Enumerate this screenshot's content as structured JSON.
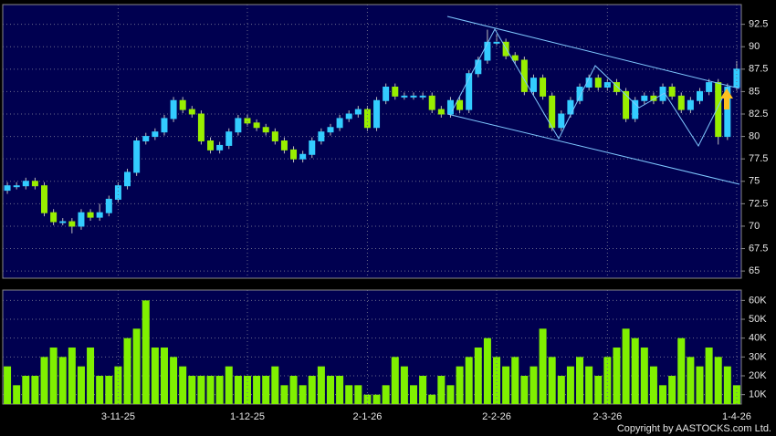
{
  "chart_data": [
    {
      "type": "candlestick",
      "up_color": "#33ccff",
      "down_color": "#99ee00",
      "ylim": [
        64.2,
        94.7
      ],
      "yticks": [
        65,
        67.5,
        70,
        72.5,
        75,
        77.5,
        80,
        82.5,
        85,
        87.5,
        90,
        92.5
      ],
      "grid": true,
      "open": [
        74,
        74.5,
        74.5,
        75,
        74.5,
        71.5,
        70.5,
        70.5,
        70,
        71.5,
        71,
        71.5,
        73,
        74.5,
        76,
        79.5,
        80,
        80.5,
        82,
        84,
        83,
        82.5,
        79.5,
        78.5,
        79,
        80.5,
        82,
        81.5,
        81,
        80.5,
        79.5,
        78.5,
        77.5,
        78,
        79.5,
        80.5,
        81,
        82,
        82.5,
        83,
        81,
        84,
        85.5,
        84.5,
        84.5,
        84.5,
        84.5,
        83,
        82.5,
        84,
        83,
        87,
        88.5,
        90.5,
        90.5,
        89,
        88.5,
        85,
        86.5,
        84.5,
        81,
        82.5,
        84,
        85.5,
        86.5,
        85.5,
        86,
        85,
        82,
        84,
        84.5,
        84,
        85.5,
        84.5,
        83,
        84,
        85,
        86,
        80,
        85.5
      ],
      "high": [
        74.9,
        74.9,
        75.4,
        75.4,
        74.9,
        71.9,
        70.9,
        70.9,
        71.9,
        71.9,
        72.5,
        73.4,
        74.9,
        76.4,
        79.9,
        80.4,
        80.9,
        82.4,
        84.4,
        84.4,
        83.4,
        82.9,
        79.9,
        79.4,
        80.9,
        82.4,
        82.4,
        81.9,
        81.4,
        80.9,
        79.9,
        78.9,
        78.4,
        79.9,
        80.9,
        81.4,
        82.4,
        82.9,
        83.4,
        83.4,
        84.4,
        85.9,
        85.9,
        84.9,
        84.9,
        84.9,
        84.9,
        83.4,
        84.4,
        84.4,
        87.4,
        88.9,
        91.9,
        91.4,
        90.9,
        89.4,
        88.9,
        86.9,
        86.9,
        84.9,
        82.9,
        84.4,
        85.9,
        86.9,
        86.9,
        86.4,
        86.4,
        85.4,
        84.4,
        84.9,
        84.9,
        85.9,
        85.9,
        84.9,
        84.4,
        85.4,
        86.4,
        86.4,
        85.9,
        88.4
      ],
      "low": [
        73.6,
        74.1,
        74.1,
        74.1,
        71.1,
        70.1,
        70.1,
        69.2,
        69.6,
        70.6,
        70.6,
        71.1,
        72.6,
        74.1,
        75.6,
        79.1,
        79.6,
        80.1,
        81.6,
        82.6,
        82.1,
        79.1,
        78.1,
        78.1,
        78.6,
        80.1,
        81.1,
        80.6,
        80.1,
        79.1,
        78.1,
        77.1,
        77.1,
        77.6,
        79.1,
        80.1,
        80.6,
        81.6,
        82.1,
        80.6,
        80.6,
        83.6,
        84.1,
        84.1,
        84.1,
        84.1,
        82.6,
        82.1,
        82.1,
        82.6,
        82.6,
        86.6,
        88.1,
        90.1,
        88.6,
        88.1,
        84.6,
        84.6,
        84.1,
        80.6,
        80.6,
        82.1,
        83.6,
        85.1,
        85.1,
        85.1,
        84.6,
        81.6,
        81.6,
        83.6,
        83.6,
        83.6,
        84.1,
        82.6,
        82.6,
        83.6,
        84.6,
        79.1,
        79.6,
        85.1
      ],
      "close": [
        74.5,
        74.5,
        75,
        74.5,
        71.5,
        70.5,
        70.5,
        70,
        71.5,
        71,
        71.5,
        73,
        74.5,
        76,
        79.5,
        80,
        80.5,
        82,
        84,
        83,
        82.5,
        79.5,
        78.5,
        79,
        80.5,
        82,
        81.5,
        81,
        80.5,
        79.5,
        78.5,
        77.5,
        78,
        79.5,
        80.5,
        81,
        82,
        82.5,
        83,
        81,
        84,
        85.5,
        84.5,
        84.5,
        84.5,
        84.5,
        83,
        82.5,
        84,
        83,
        87,
        88.5,
        90.5,
        90.5,
        89,
        88.5,
        85,
        86.5,
        84.5,
        81,
        82.5,
        84,
        85.5,
        86.5,
        85.5,
        86,
        85,
        82,
        84,
        84.5,
        84,
        85.5,
        84.5,
        83,
        84,
        85,
        86,
        80,
        85.5,
        87.5
      ]
    },
    {
      "type": "bar",
      "color": "#80f000",
      "ylim": [
        5000,
        65500
      ],
      "grid": true,
      "yticks": [
        {
          "value": 10000,
          "label": "10K"
        },
        {
          "value": 20000,
          "label": "20K"
        },
        {
          "value": 30000,
          "label": "30K"
        },
        {
          "value": 40000,
          "label": "40K"
        },
        {
          "value": 50000,
          "label": "50K"
        },
        {
          "value": 60000,
          "label": "60K"
        }
      ],
      "categories": [
        null,
        null,
        null,
        null,
        null,
        null,
        null,
        null,
        null,
        null,
        null,
        null,
        "3-11-25",
        null,
        null,
        null,
        null,
        null,
        null,
        null,
        null,
        null,
        null,
        null,
        null,
        null,
        "1-12-25",
        null,
        null,
        null,
        null,
        null,
        null,
        null,
        null,
        null,
        null,
        null,
        null,
        "2-1-26",
        null,
        null,
        null,
        null,
        null,
        null,
        null,
        null,
        null,
        null,
        null,
        null,
        null,
        "2-2-26",
        null,
        null,
        null,
        null,
        null,
        null,
        null,
        null,
        null,
        null,
        null,
        "2-3-26",
        null,
        null,
        null,
        null,
        null,
        null,
        null,
        null,
        null,
        null,
        null,
        null,
        null,
        "1-4-26"
      ],
      "values": [
        25000,
        15000,
        20000,
        20000,
        30000,
        35000,
        30000,
        35000,
        25000,
        35000,
        20000,
        20000,
        25000,
        40000,
        45000,
        60000,
        35000,
        35000,
        30000,
        25000,
        20000,
        20000,
        20000,
        20000,
        25000,
        20000,
        20000,
        20000,
        20000,
        25000,
        15000,
        20000,
        15000,
        20000,
        25000,
        20000,
        20000,
        15000,
        15000,
        10000,
        10000,
        15000,
        30000,
        25000,
        15000,
        20000,
        10000,
        20000,
        15000,
        25000,
        30000,
        35000,
        40000,
        30000,
        25000,
        30000,
        20000,
        25000,
        45000,
        30000,
        20000,
        25000,
        30000,
        25000,
        20000,
        30000,
        35000,
        45000,
        40000,
        35000,
        25000,
        15000,
        20000,
        40000,
        30000,
        25000,
        35000,
        30000,
        25000,
        15000
      ]
    }
  ],
  "footer": "Copyright by AASTOCKS.com Ltd."
}
